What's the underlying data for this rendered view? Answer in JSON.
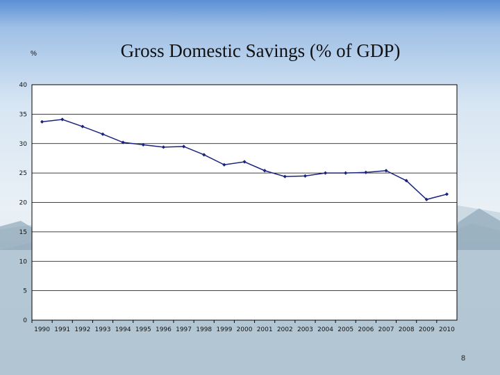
{
  "slide": {
    "title": "Gross Domestic Savings (% of GDP)",
    "unit_label": "%",
    "page_number": "8"
  },
  "colors": {
    "line": "#1a237e",
    "plot_background": "#ffffff",
    "grid": "#000000"
  },
  "chart_data": {
    "type": "line",
    "title": "Gross Domestic Savings (% of GDP)",
    "xlabel": "",
    "ylabel": "%",
    "ylim": [
      0,
      40
    ],
    "yticks": [
      0,
      5,
      10,
      15,
      20,
      25,
      30,
      35,
      40
    ],
    "grid": true,
    "legend": "none",
    "categories": [
      "1990",
      "1991",
      "1992",
      "1993",
      "1994",
      "1995",
      "1996",
      "1997",
      "1998",
      "1999",
      "2000",
      "2001",
      "2002",
      "2003",
      "2004",
      "2005",
      "2006",
      "2007",
      "2008",
      "2009",
      "2010"
    ],
    "series": [
      {
        "name": "Gross Domestic Savings",
        "values": [
          33.7,
          34.1,
          32.9,
          31.6,
          30.2,
          29.8,
          29.4,
          29.5,
          28.1,
          26.4,
          26.9,
          25.4,
          24.4,
          24.5,
          25.0,
          25.0,
          25.1,
          25.4,
          23.7,
          20.5,
          21.4
        ]
      }
    ]
  }
}
